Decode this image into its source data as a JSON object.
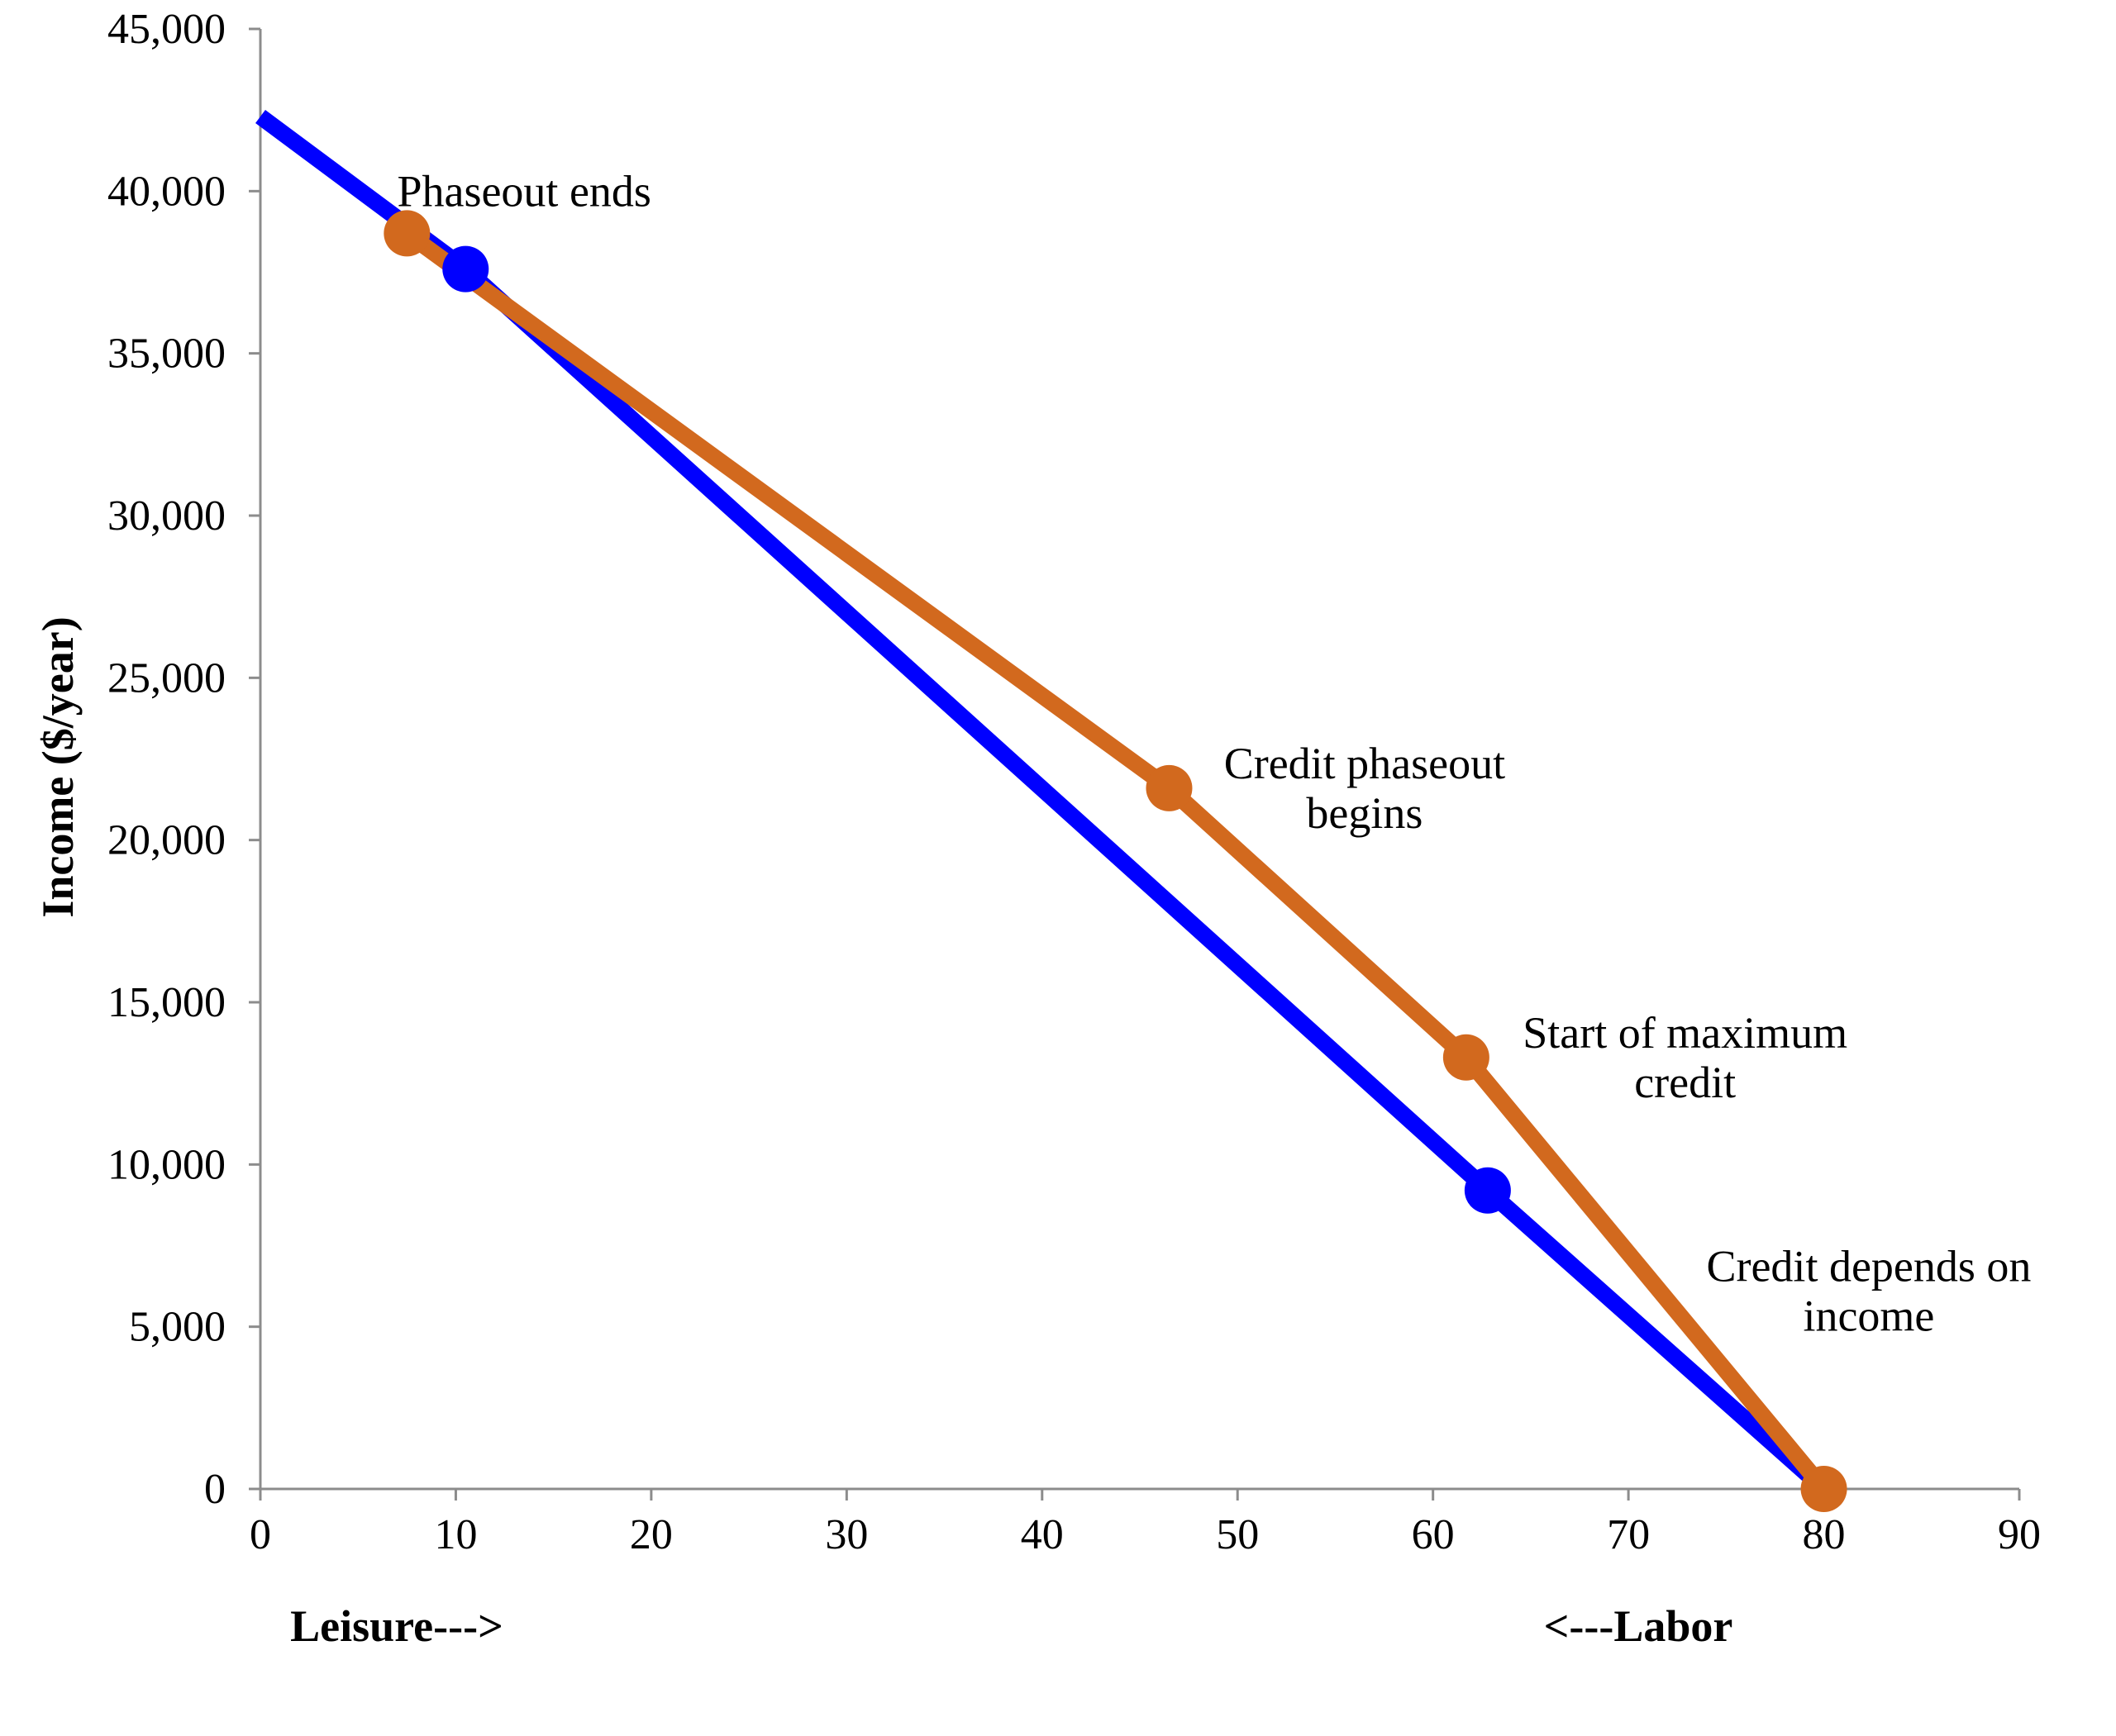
{
  "chart_data": {
    "type": "line",
    "title": "",
    "xlabel": "",
    "ylabel": "Income ($/year)",
    "xlim": [
      0,
      90
    ],
    "ylim": [
      0,
      45000
    ],
    "x_ticks": [
      0,
      10,
      20,
      30,
      40,
      50,
      60,
      70,
      80,
      90
    ],
    "y_ticks": [
      0,
      5000,
      10000,
      15000,
      20000,
      25000,
      30000,
      35000,
      40000,
      45000
    ],
    "x_tick_labels": [
      "0",
      "10",
      "20",
      "30",
      "40",
      "50",
      "60",
      "70",
      "80",
      "90"
    ],
    "y_tick_labels": [
      "0",
      "5,000",
      "10,000",
      "15,000",
      "20,000",
      "25,000",
      "30,000",
      "35,000",
      "40,000",
      "45,000"
    ],
    "grid": false,
    "legend": "none",
    "axis_direction_labels": {
      "left": "Leisure--->",
      "right": "<---Labor"
    },
    "series": [
      {
        "color": "#0000ff",
        "points": [
          {
            "x": 0,
            "y": 42300
          },
          {
            "x": 10.5,
            "y": 37600,
            "marker": true
          },
          {
            "x": 62.8,
            "y": 9200,
            "marker": true
          },
          {
            "x": 80,
            "y": 0
          }
        ]
      },
      {
        "color": "#d2691e",
        "points": [
          {
            "x": 7.5,
            "y": 38700,
            "marker": true
          },
          {
            "x": 46.5,
            "y": 21600,
            "marker": true
          },
          {
            "x": 61.7,
            "y": 13300,
            "marker": true
          },
          {
            "x": 80,
            "y": 0,
            "marker": true
          }
        ]
      }
    ],
    "annotations": [
      {
        "lines": [
          "Phaseout ends"
        ],
        "x": 13.5,
        "y": 40000,
        "anchor": "middle"
      },
      {
        "lines": [
          "Credit phaseout",
          "begins"
        ],
        "x": 56.5,
        "y": 21600,
        "anchor": "middle"
      },
      {
        "lines": [
          "Start of maximum",
          "credit"
        ],
        "x": 72.9,
        "y": 13300,
        "anchor": "middle"
      },
      {
        "lines": [
          "Credit depends on",
          "income"
        ],
        "x": 82.3,
        "y": 6100,
        "anchor": "middle"
      }
    ]
  }
}
